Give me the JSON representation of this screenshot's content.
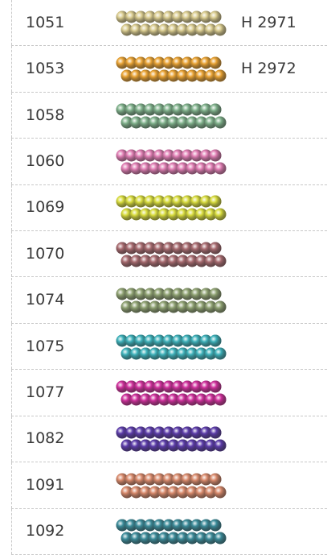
{
  "table": {
    "rows": [
      {
        "code": "1051",
        "color": "#d9cb8e",
        "ref": "H 2971"
      },
      {
        "code": "1053",
        "color": "#e9a232",
        "ref": "H 2972"
      },
      {
        "code": "1058",
        "color": "#80b28c"
      },
      {
        "code": "1060",
        "color": "#e07db3"
      },
      {
        "code": "1069",
        "color": "#d8dc3c"
      },
      {
        "code": "1070",
        "color": "#a86b70"
      },
      {
        "code": "1074",
        "color": "#8fa272"
      },
      {
        "code": "1075",
        "color": "#3cb1ba"
      },
      {
        "code": "1077",
        "color": "#cf2f9b"
      },
      {
        "code": "1082",
        "color": "#5b3ba9"
      },
      {
        "code": "1091",
        "color": "#d98a6c"
      },
      {
        "code": "1092",
        "color": "#3b8b99"
      }
    ]
  }
}
